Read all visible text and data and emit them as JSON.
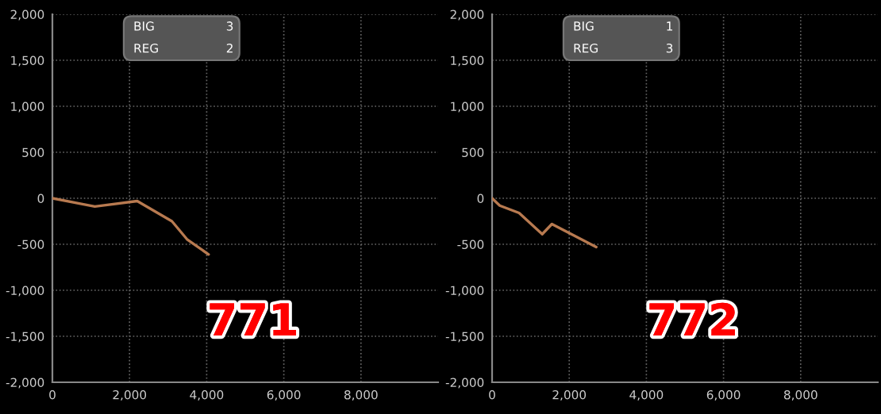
{
  "chart_data": [
    {
      "type": "line",
      "x": [
        0,
        1100,
        2200,
        3100,
        3500,
        4050
      ],
      "series": [
        {
          "color": "#b87a50",
          "values": [
            0,
            -90,
            -30,
            -250,
            -450,
            -610
          ]
        }
      ],
      "xlim": [
        0,
        10000
      ],
      "xticks": [
        {
          "value": 0,
          "label": "0"
        },
        {
          "value": 2000,
          "label": "2,000"
        },
        {
          "value": 4000,
          "label": "4,000"
        },
        {
          "value": 6000,
          "label": "6,000"
        },
        {
          "value": 8000,
          "label": "8,000"
        }
      ],
      "ylim": [
        -2000,
        2000
      ],
      "yticks": [
        {
          "value": -2000,
          "label": "-2,000"
        },
        {
          "value": -1500,
          "label": "-1,500"
        },
        {
          "value": -1000,
          "label": "-1,000"
        },
        {
          "value": -500,
          "label": "-500"
        },
        {
          "value": 0,
          "label": "0"
        },
        {
          "value": 500,
          "label": "500"
        },
        {
          "value": 1000,
          "label": "1,000"
        },
        {
          "value": 1500,
          "label": "1,500"
        },
        {
          "value": 2000,
          "label": "2,000"
        }
      ],
      "grid": true,
      "annotations": [
        "BIG",
        "3",
        "REG",
        "2",
        "771"
      ]
    },
    {
      "type": "line",
      "x": [
        0,
        200,
        700,
        1300,
        1550,
        2700
      ],
      "series": [
        {
          "color": "#b87a50",
          "values": [
            0,
            -80,
            -160,
            -390,
            -280,
            -530
          ]
        }
      ],
      "xlim": [
        0,
        10000
      ],
      "xticks": [
        {
          "value": 0,
          "label": "0"
        },
        {
          "value": 2000,
          "label": "2,000"
        },
        {
          "value": 4000,
          "label": "4,000"
        },
        {
          "value": 6000,
          "label": "6,000"
        },
        {
          "value": 8000,
          "label": "8,000"
        }
      ],
      "ylim": [
        -2000,
        2000
      ],
      "yticks": [
        {
          "value": -2000,
          "label": "-2,000"
        },
        {
          "value": -1500,
          "label": "-1,500"
        },
        {
          "value": -1000,
          "label": "-1,000"
        },
        {
          "value": -500,
          "label": "-500"
        },
        {
          "value": 0,
          "label": "0"
        },
        {
          "value": 500,
          "label": "500"
        },
        {
          "value": 1000,
          "label": "1,000"
        },
        {
          "value": 1500,
          "label": "1,500"
        },
        {
          "value": 2000,
          "label": "2,000"
        }
      ],
      "grid": true,
      "annotations": [
        "BIG",
        "1",
        "REG",
        "3",
        "772"
      ]
    }
  ]
}
